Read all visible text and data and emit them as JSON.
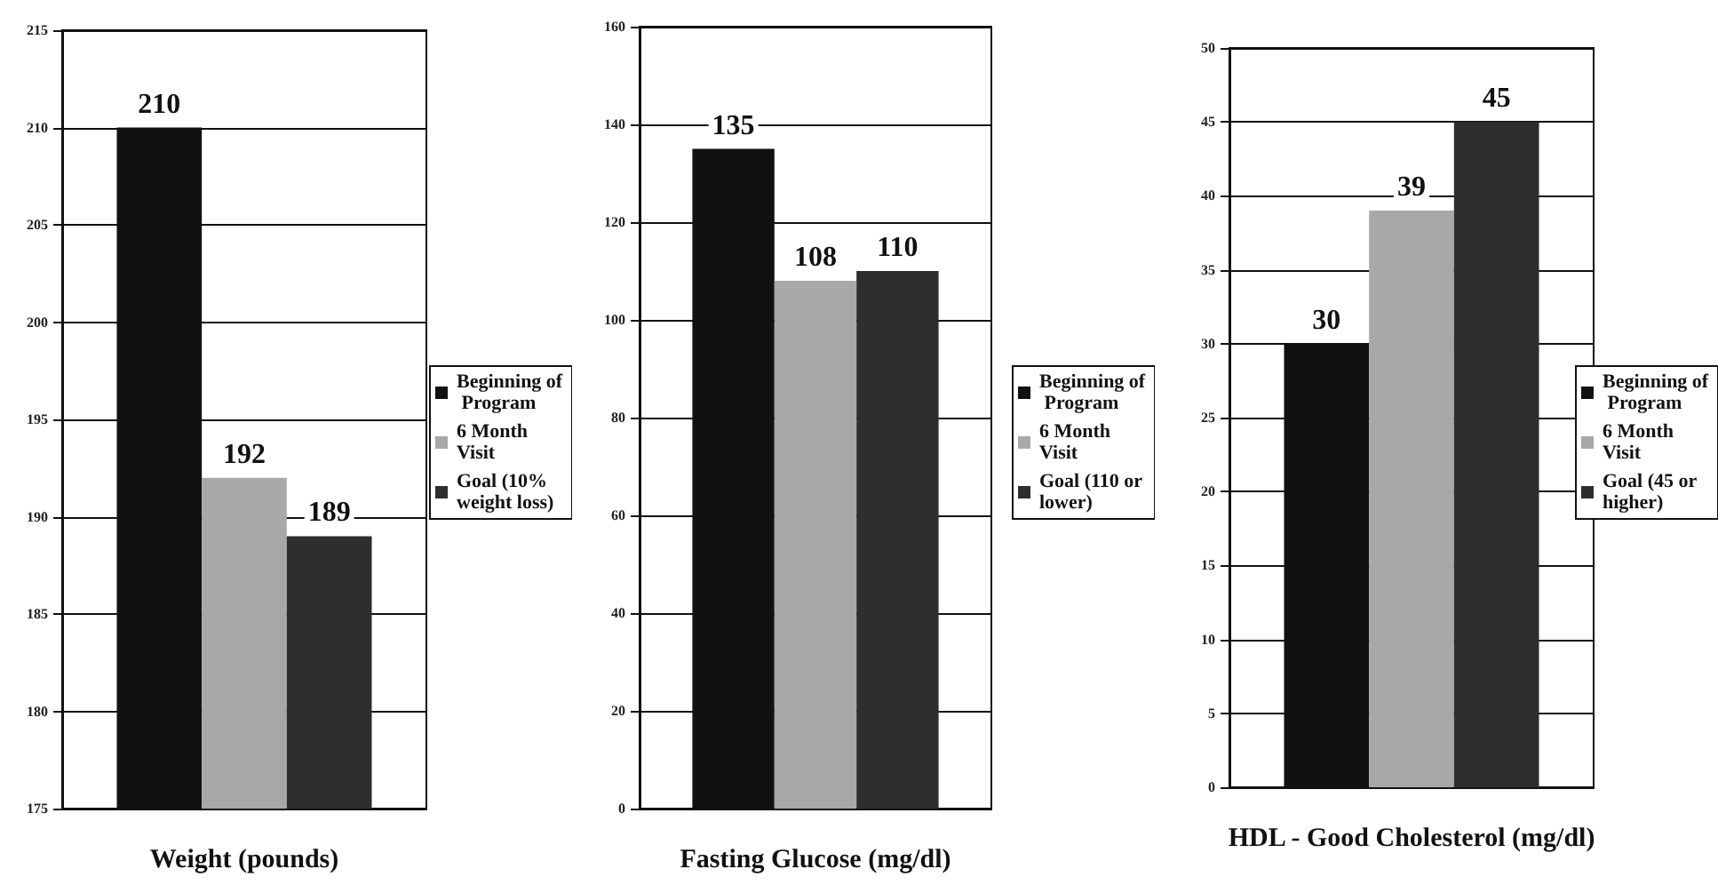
{
  "chart_data": [
    {
      "type": "bar",
      "xlabel": "Weight (pounds)",
      "categories": [
        null
      ],
      "series": [
        {
          "name": "Beginning of Program",
          "color": "#111111",
          "values": [
            210
          ]
        },
        {
          "name": "6 Month Visit",
          "color": "#a8a8a8",
          "values": [
            192
          ]
        },
        {
          "name": "Goal (10% weight loss)",
          "color": "#2e2e2e",
          "values": [
            189
          ]
        }
      ],
      "ylim": [
        175,
        215
      ],
      "yticks": [
        175,
        180,
        185,
        190,
        195,
        200,
        205,
        210,
        215
      ],
      "grid": "y",
      "legend": "right",
      "data_labels": true
    },
    {
      "type": "bar",
      "xlabel": "Fasting Glucose (mg/dl)",
      "categories": [
        null
      ],
      "series": [
        {
          "name": "Beginning of Program",
          "color": "#111111",
          "values": [
            135
          ]
        },
        {
          "name": "6 Month Visit",
          "color": "#a8a8a8",
          "values": [
            108
          ]
        },
        {
          "name": "Goal (110 or lower)",
          "color": "#2e2e2e",
          "values": [
            110
          ]
        }
      ],
      "ylim": [
        0,
        160
      ],
      "yticks": [
        0,
        20,
        40,
        60,
        80,
        100,
        120,
        140,
        160
      ],
      "grid": "y",
      "legend": "right",
      "data_labels": true
    },
    {
      "type": "bar",
      "xlabel": "HDL - Good Cholesterol (mg/dl)",
      "categories": [
        null
      ],
      "series": [
        {
          "name": "Beginning of Program",
          "color": "#111111",
          "values": [
            30
          ]
        },
        {
          "name": "6 Month Visit",
          "color": "#a8a8a8",
          "values": [
            39
          ]
        },
        {
          "name": "Goal (45 or higher)",
          "color": "#2e2e2e",
          "values": [
            45
          ]
        }
      ],
      "ylim": [
        0,
        50
      ],
      "yticks": [
        0,
        5,
        10,
        15,
        20,
        25,
        30,
        35,
        40,
        45,
        50
      ],
      "grid": "y",
      "legend": "right",
      "data_labels": true
    }
  ]
}
